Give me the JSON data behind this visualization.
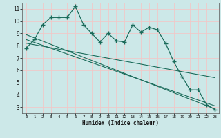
{
  "xlabel": "Humidex (Indice chaleur)",
  "bg_color": "#cce8e8",
  "grid_color": "#f0c8c8",
  "line_color": "#1a6b5a",
  "xlim": [
    -0.5,
    23.5
  ],
  "ylim": [
    2.5,
    11.5
  ],
  "xticks": [
    0,
    1,
    2,
    3,
    4,
    5,
    6,
    7,
    8,
    9,
    10,
    11,
    12,
    13,
    14,
    15,
    16,
    17,
    18,
    19,
    20,
    21,
    22,
    23
  ],
  "yticks": [
    3,
    4,
    5,
    6,
    7,
    8,
    9,
    10,
    11
  ],
  "curve1_x": [
    0,
    1,
    2,
    3,
    4,
    5,
    6,
    7,
    8,
    9,
    10,
    11,
    12,
    13,
    14,
    15,
    16,
    17,
    18,
    19,
    20,
    21,
    22,
    23
  ],
  "curve1_y": [
    7.8,
    8.5,
    9.7,
    10.3,
    10.3,
    10.3,
    11.2,
    9.7,
    9.0,
    8.3,
    9.0,
    8.4,
    8.3,
    9.7,
    9.1,
    9.5,
    9.3,
    8.2,
    6.7,
    5.5,
    4.4,
    4.4,
    3.2,
    2.8
  ],
  "line1_x": [
    0,
    23
  ],
  "line1_y": [
    8.5,
    3.1
  ],
  "line2_x": [
    0,
    23
  ],
  "line2_y": [
    8.9,
    2.85
  ],
  "line3_x": [
    0,
    23
  ],
  "line3_y": [
    8.2,
    5.4
  ]
}
